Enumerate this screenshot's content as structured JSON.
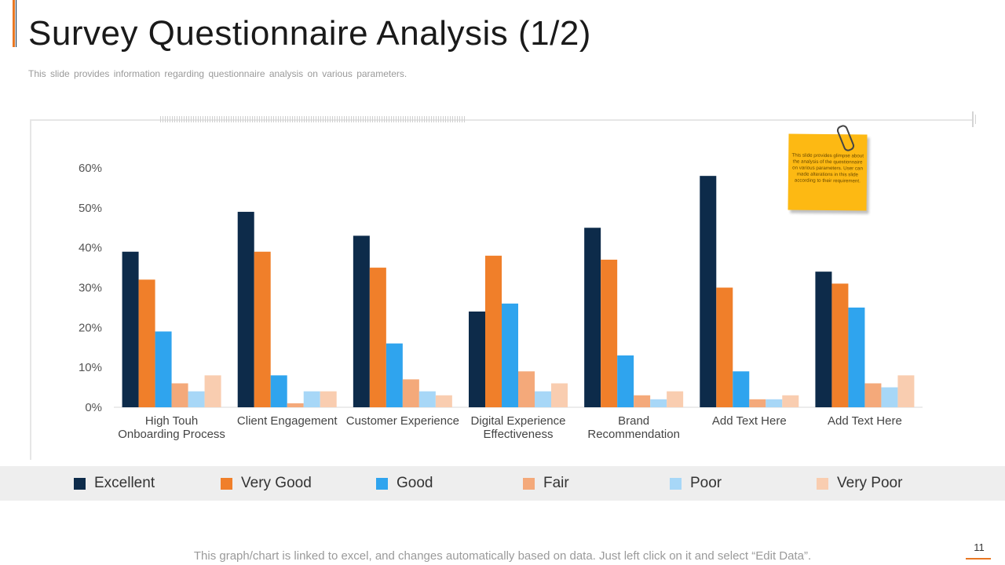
{
  "slide": {
    "title": "Survey Questionnaire Analysis (1/2)",
    "subtitle": "This slide provides information regarding questionnaire analysis on various parameters.",
    "footer": "This graph/chart is linked to excel, and changes automatically based on data. Just left click on it and select “Edit Data”.",
    "page_number": "11"
  },
  "sticky_note": {
    "text": "This slide provides glimpse about the analysis of the questionnaire on various parameters. User can made alterations in this slide according to their requirement."
  },
  "colors": {
    "accent": "#E87722",
    "note": "#FDB913"
  },
  "chart_data": {
    "type": "bar",
    "title": "",
    "xlabel": "",
    "ylabel": "",
    "ylim": [
      0,
      60
    ],
    "y_ticks": [
      "0%",
      "10%",
      "20%",
      "30%",
      "40%",
      "50%",
      "60%"
    ],
    "categories": [
      [
        "High Touh",
        "Onboarding Process"
      ],
      [
        "Client Engagement"
      ],
      [
        "Customer Experience"
      ],
      [
        "Digital Experience",
        "Effectiveness"
      ],
      [
        "Brand",
        "Recommendation"
      ],
      [
        "Add Text Here"
      ],
      [
        "Add Text Here"
      ]
    ],
    "series": [
      {
        "name": "Excellent",
        "color": "#0D2B4A",
        "values": [
          39,
          49,
          43,
          24,
          45,
          58,
          34
        ]
      },
      {
        "name": "Very Good",
        "color": "#F07F2A",
        "values": [
          32,
          39,
          35,
          38,
          37,
          30,
          31
        ]
      },
      {
        "name": "Good",
        "color": "#2FA4EE",
        "values": [
          19,
          8,
          16,
          26,
          13,
          9,
          25
        ]
      },
      {
        "name": "Fair",
        "color": "#F4A97A",
        "values": [
          6,
          1,
          7,
          9,
          3,
          2,
          6
        ]
      },
      {
        "name": "Poor",
        "color": "#A7D7F7",
        "values": [
          4,
          4,
          4,
          4,
          2,
          2,
          5
        ]
      },
      {
        "name": "Very Poor",
        "color": "#F9CDB0",
        "values": [
          8,
          4,
          3,
          6,
          4,
          3,
          8
        ]
      }
    ],
    "legend_position": "bottom"
  }
}
